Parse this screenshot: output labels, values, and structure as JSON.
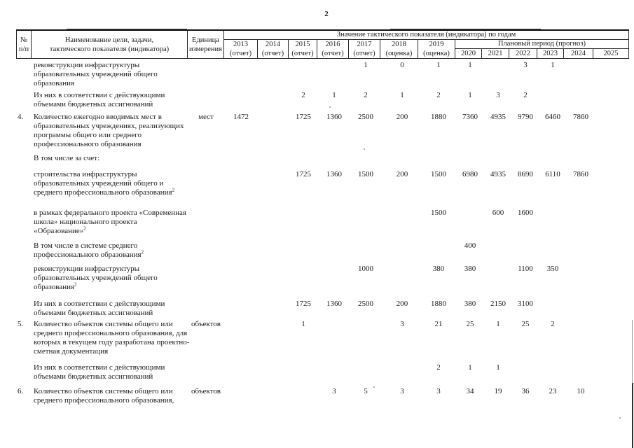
{
  "page_number": "2",
  "table": {
    "header": {
      "num": [
        "№",
        "п/п"
      ],
      "name": [
        "Наименование цели, задачи,",
        "тактического показателя (индикатора)"
      ],
      "unit": [
        "Единица",
        "измерения"
      ],
      "values_title": "Значение тактического показателя (индикатора) по годам",
      "plan_title": "Плановый период (прогноз)",
      "report_years": [
        {
          "year": "2013",
          "note": "(отчет)"
        },
        {
          "year": "2014",
          "note": "(отчет)"
        },
        {
          "year": "2015",
          "note": "(отчет)"
        },
        {
          "year": "2016",
          "note": "(отчет)"
        },
        {
          "year": "2017",
          "note": "(отчет)"
        },
        {
          "year": "2018",
          "note": "(оценка)"
        },
        {
          "year": "2019",
          "note": "(оценка)"
        }
      ],
      "plan_years": [
        "2020",
        "2021",
        "2022",
        "2023",
        "2024",
        "2025"
      ]
    },
    "footnote_mark": "2",
    "rows": [
      {
        "num": "",
        "unit": "",
        "sup": false,
        "lines": [
          "реконструкции инфраструктуры",
          "образовательных учреждений общего",
          "образования"
        ],
        "values": {
          "2017": "1",
          "2018": "0",
          "2019": "1",
          "2020": "1",
          "2022": "3",
          "2023": "1"
        }
      },
      {
        "num": "",
        "unit": "",
        "sup": false,
        "lines": [
          "Из них в соответствии с действующими",
          "объемами бюджетных ассигнований"
        ],
        "values": {
          "2015": "2",
          "2016": "1",
          "2017": "2",
          "2018": "1",
          "2019": "2",
          "2020": "1",
          "2021": "3",
          "2022": "2"
        }
      },
      {
        "num": "4.",
        "unit": "мест",
        "sup": false,
        "lines": [
          "Количество ежегодно вводимых мест в",
          "образовательных учреждениях, реализующих",
          "программы общего или среднего",
          "профессионального образования"
        ],
        "values": {
          "2013": "1472",
          "2015": "1725",
          "2016": "1360",
          "2017": "2500",
          "2018": "200",
          "2019": "1880",
          "2020": "7360",
          "2021": "4935",
          "2022": "9790",
          "2023": "6460",
          "2024": "7860"
        }
      },
      {
        "num": "",
        "unit": "",
        "sup": false,
        "lines": [
          "В том числе за счет:"
        ],
        "values": {}
      },
      {
        "num": "",
        "unit": "",
        "sup": true,
        "lines": [
          "строительства инфраструктуры",
          "образовательных учреждений общего и",
          "среднего профессионального образования"
        ],
        "values": {
          "2015": "1725",
          "2016": "1360",
          "2017": "1500",
          "2018": "200",
          "2019": "1500",
          "2020": "6980",
          "2021": "4935",
          "2022": "8690",
          "2023": "6110",
          "2024": "7860"
        }
      },
      {
        "num": "",
        "unit": "",
        "sup": true,
        "lines": [
          "в рамках федерального проекта «Современная",
          "школа» национального проекта",
          "«Образование»"
        ],
        "values": {
          "2019": "1500",
          "2021": "600",
          "2022": "1600"
        }
      },
      {
        "num": "",
        "unit": "",
        "sup": true,
        "lines": [
          "В том числе в системе среднего",
          "профессионального образования"
        ],
        "values": {
          "2020": "400"
        }
      },
      {
        "num": "",
        "unit": "",
        "sup": true,
        "lines": [
          "реконструкции инфраструктуры",
          "образовательных учреждений общего",
          "образования"
        ],
        "values": {
          "2017": "1000",
          "2019": "380",
          "2020": "380",
          "2022": "1100",
          "2023": "350"
        }
      },
      {
        "num": "",
        "unit": "",
        "sup": false,
        "lines": [
          "Из них в соответствии с действующими",
          "объемами бюджетных ассигнований"
        ],
        "values": {
          "2015": "1725",
          "2016": "1360",
          "2017": "2500",
          "2018": "200",
          "2019": "1880",
          "2020": "380",
          "2021": "2150",
          "2022": "3100"
        }
      },
      {
        "num": "5.",
        "unit": "объектов",
        "sup": false,
        "lines": [
          "Количество объектов системы общего или",
          "среднего профессионального образования, для",
          "которых в текущем году разработана проектно-",
          "сметная документация"
        ],
        "values": {
          "2015": "1",
          "2018": "3",
          "2019": "21",
          "2020": "25",
          "2021": "1",
          "2022": "25",
          "2023": "2"
        }
      },
      {
        "num": "",
        "unit": "",
        "sup": false,
        "lines": [
          "Из них в соответствии с действующими",
          "объемами бюджетных ассигнований"
        ],
        "values": {
          "2019": "2",
          "2020": "1",
          "2021": "1"
        }
      },
      {
        "num": "6.",
        "unit": "объектов",
        "sup": false,
        "lines": [
          "Количество объектов системы общего или",
          "среднего профессионального образования,"
        ],
        "values": {
          "2016": "3",
          "2017": "5",
          "2018": "3",
          "2019": "3",
          "2020": "34",
          "2021": "19",
          "2022": "36",
          "2023": "23",
          "2024": "10"
        }
      }
    ]
  }
}
